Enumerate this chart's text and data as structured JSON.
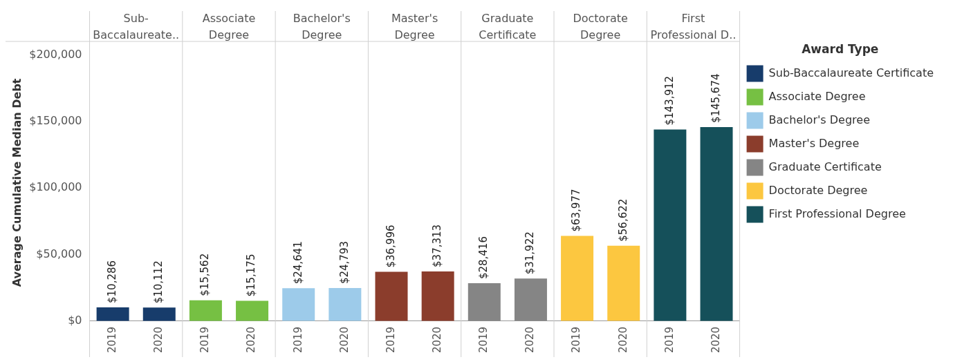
{
  "chart_data": {
    "type": "bar",
    "ylabel": "Average Cumulative Median Debt",
    "legend_title": "Award Type",
    "legend": "right",
    "grid": false,
    "categories": [
      "2019",
      "2020",
      "2019",
      "2020",
      "2019",
      "2020",
      "2019",
      "2020",
      "2019",
      "2020",
      "2019",
      "2020",
      "2019",
      "2020"
    ],
    "annotations": [
      "Sub-Baccalaureate..",
      "Associate Degree",
      "Bachelor's Degree",
      "Master's Degree",
      "Graduate Certificate",
      "Doctorate Degree",
      "First Professional D.."
    ],
    "ylim": [
      0,
      208000
    ],
    "yticks": [
      {
        "value": 0,
        "label": "$0"
      },
      {
        "value": 50000,
        "label": "$50,000"
      },
      {
        "value": 100000,
        "label": "$100,000"
      },
      {
        "value": 150000,
        "label": "$150,000"
      },
      {
        "value": 200000,
        "label": "$200,000"
      }
    ],
    "series": [
      {
        "name": "Sub-Baccalaureate Certificate",
        "color": "#173c6b",
        "values": [
          10286,
          10112,
          null,
          null,
          null,
          null,
          null,
          null,
          null,
          null,
          null,
          null,
          null,
          null
        ],
        "value_labels": [
          "$10,286",
          "$10,112",
          null,
          null,
          null,
          null,
          null,
          null,
          null,
          null,
          null,
          null,
          null,
          null
        ]
      },
      {
        "name": "Associate Degree",
        "color": "#76c043",
        "values": [
          null,
          null,
          15562,
          15175,
          null,
          null,
          null,
          null,
          null,
          null,
          null,
          null,
          null,
          null
        ],
        "value_labels": [
          null,
          null,
          "$15,562",
          "$15,175",
          null,
          null,
          null,
          null,
          null,
          null,
          null,
          null,
          null,
          null
        ]
      },
      {
        "name": "Bachelor's Degree",
        "color": "#9dcbea",
        "values": [
          null,
          null,
          null,
          null,
          24641,
          24793,
          null,
          null,
          null,
          null,
          null,
          null,
          null,
          null
        ],
        "value_labels": [
          null,
          null,
          null,
          null,
          "$24,641",
          "$24,793",
          null,
          null,
          null,
          null,
          null,
          null,
          null,
          null
        ]
      },
      {
        "name": "Master's Degree",
        "color": "#8b3d2c",
        "values": [
          null,
          null,
          null,
          null,
          null,
          null,
          36996,
          37313,
          null,
          null,
          null,
          null,
          null,
          null
        ],
        "value_labels": [
          null,
          null,
          null,
          null,
          null,
          null,
          "$36,996",
          "$37,313",
          null,
          null,
          null,
          null,
          null,
          null
        ]
      },
      {
        "name": "Graduate Certificate",
        "color": "#858585",
        "values": [
          null,
          null,
          null,
          null,
          null,
          null,
          null,
          null,
          28416,
          31922,
          null,
          null,
          null,
          null
        ],
        "value_labels": [
          null,
          null,
          null,
          null,
          null,
          null,
          null,
          null,
          "$28,416",
          "$31,922",
          null,
          null,
          null,
          null
        ]
      },
      {
        "name": "Doctorate Degree",
        "color": "#fcc740",
        "values": [
          null,
          null,
          null,
          null,
          null,
          null,
          null,
          null,
          null,
          null,
          63977,
          56622,
          null,
          null
        ],
        "value_labels": [
          null,
          null,
          null,
          null,
          null,
          null,
          null,
          null,
          null,
          null,
          "$63,977",
          "$56,622",
          null,
          null
        ]
      },
      {
        "name": "First Professional Degree",
        "color": "#15505a",
        "values": [
          null,
          null,
          null,
          null,
          null,
          null,
          null,
          null,
          null,
          null,
          null,
          null,
          143912,
          145674
        ],
        "value_labels": [
          null,
          null,
          null,
          null,
          null,
          null,
          null,
          null,
          null,
          null,
          null,
          null,
          "$143,912",
          "$145,674"
        ]
      }
    ]
  }
}
